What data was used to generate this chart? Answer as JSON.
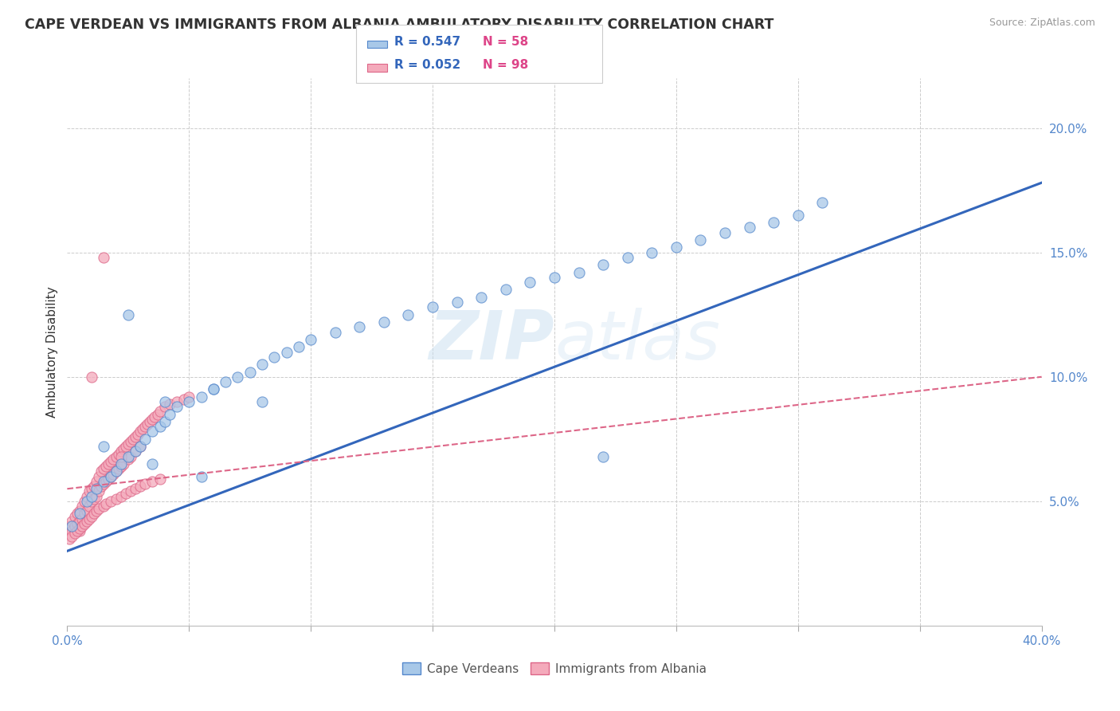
{
  "title": "CAPE VERDEAN VS IMMIGRANTS FROM ALBANIA AMBULATORY DISABILITY CORRELATION CHART",
  "source": "Source: ZipAtlas.com",
  "ylabel": "Ambulatory Disability",
  "xlim": [
    0.0,
    0.4
  ],
  "ylim": [
    0.0,
    0.22
  ],
  "blue_color": "#a8c8e8",
  "blue_edge": "#5588cc",
  "pink_color": "#f4aabb",
  "pink_edge": "#dd6688",
  "trendline1_color": "#3366bb",
  "trendline2_color": "#dd6688",
  "watermark_zip": "ZIP",
  "watermark_atlas": "atlas",
  "cape_verdeans_x": [
    0.002,
    0.005,
    0.008,
    0.01,
    0.012,
    0.015,
    0.018,
    0.02,
    0.022,
    0.025,
    0.028,
    0.03,
    0.032,
    0.035,
    0.038,
    0.04,
    0.042,
    0.045,
    0.05,
    0.055,
    0.06,
    0.065,
    0.07,
    0.075,
    0.08,
    0.085,
    0.09,
    0.095,
    0.1,
    0.11,
    0.12,
    0.13,
    0.14,
    0.15,
    0.16,
    0.17,
    0.18,
    0.19,
    0.2,
    0.21,
    0.22,
    0.23,
    0.24,
    0.25,
    0.26,
    0.27,
    0.28,
    0.29,
    0.3,
    0.22,
    0.31,
    0.015,
    0.025,
    0.04,
    0.06,
    0.08,
    0.035,
    0.055
  ],
  "cape_verdeans_y": [
    0.04,
    0.045,
    0.05,
    0.052,
    0.055,
    0.058,
    0.06,
    0.062,
    0.065,
    0.068,
    0.07,
    0.072,
    0.075,
    0.078,
    0.08,
    0.082,
    0.085,
    0.088,
    0.09,
    0.092,
    0.095,
    0.098,
    0.1,
    0.102,
    0.105,
    0.108,
    0.11,
    0.112,
    0.115,
    0.118,
    0.12,
    0.122,
    0.125,
    0.128,
    0.13,
    0.132,
    0.135,
    0.138,
    0.14,
    0.142,
    0.145,
    0.148,
    0.15,
    0.152,
    0.155,
    0.158,
    0.16,
    0.162,
    0.165,
    0.068,
    0.17,
    0.072,
    0.125,
    0.09,
    0.095,
    0.09,
    0.065,
    0.06
  ],
  "albania_x": [
    0.001,
    0.002,
    0.002,
    0.003,
    0.003,
    0.004,
    0.004,
    0.005,
    0.005,
    0.005,
    0.006,
    0.006,
    0.007,
    0.007,
    0.008,
    0.008,
    0.009,
    0.009,
    0.01,
    0.01,
    0.011,
    0.011,
    0.012,
    0.012,
    0.013,
    0.013,
    0.014,
    0.014,
    0.015,
    0.015,
    0.016,
    0.016,
    0.017,
    0.017,
    0.018,
    0.018,
    0.019,
    0.019,
    0.02,
    0.02,
    0.021,
    0.021,
    0.022,
    0.022,
    0.023,
    0.023,
    0.024,
    0.025,
    0.025,
    0.026,
    0.026,
    0.027,
    0.028,
    0.028,
    0.029,
    0.03,
    0.03,
    0.031,
    0.032,
    0.033,
    0.034,
    0.035,
    0.036,
    0.037,
    0.038,
    0.04,
    0.042,
    0.045,
    0.048,
    0.05,
    0.001,
    0.002,
    0.003,
    0.004,
    0.005,
    0.006,
    0.007,
    0.008,
    0.009,
    0.01,
    0.011,
    0.012,
    0.013,
    0.015,
    0.016,
    0.018,
    0.02,
    0.022,
    0.024,
    0.026,
    0.028,
    0.03,
    0.032,
    0.035,
    0.038,
    0.015,
    0.01,
    0.022
  ],
  "albania_y": [
    0.04,
    0.042,
    0.038,
    0.044,
    0.04,
    0.045,
    0.041,
    0.046,
    0.042,
    0.038,
    0.048,
    0.043,
    0.05,
    0.045,
    0.052,
    0.046,
    0.054,
    0.048,
    0.055,
    0.05,
    0.056,
    0.051,
    0.058,
    0.052,
    0.06,
    0.054,
    0.062,
    0.056,
    0.063,
    0.057,
    0.064,
    0.058,
    0.065,
    0.059,
    0.066,
    0.06,
    0.067,
    0.061,
    0.068,
    0.062,
    0.069,
    0.063,
    0.07,
    0.064,
    0.071,
    0.065,
    0.072,
    0.073,
    0.067,
    0.074,
    0.068,
    0.075,
    0.076,
    0.07,
    0.077,
    0.078,
    0.072,
    0.079,
    0.08,
    0.081,
    0.082,
    0.083,
    0.084,
    0.085,
    0.086,
    0.088,
    0.089,
    0.09,
    0.091,
    0.092,
    0.035,
    0.036,
    0.037,
    0.038,
    0.039,
    0.04,
    0.041,
    0.042,
    0.043,
    0.044,
    0.045,
    0.046,
    0.047,
    0.048,
    0.049,
    0.05,
    0.051,
    0.052,
    0.053,
    0.054,
    0.055,
    0.056,
    0.057,
    0.058,
    0.059,
    0.148,
    0.1,
    0.068
  ],
  "trendline1_x0": 0.0,
  "trendline1_y0": 0.03,
  "trendline1_x1": 0.4,
  "trendline1_y1": 0.178,
  "trendline2_x0": 0.0,
  "trendline2_y0": 0.055,
  "trendline2_x1": 0.4,
  "trendline2_y1": 0.1
}
